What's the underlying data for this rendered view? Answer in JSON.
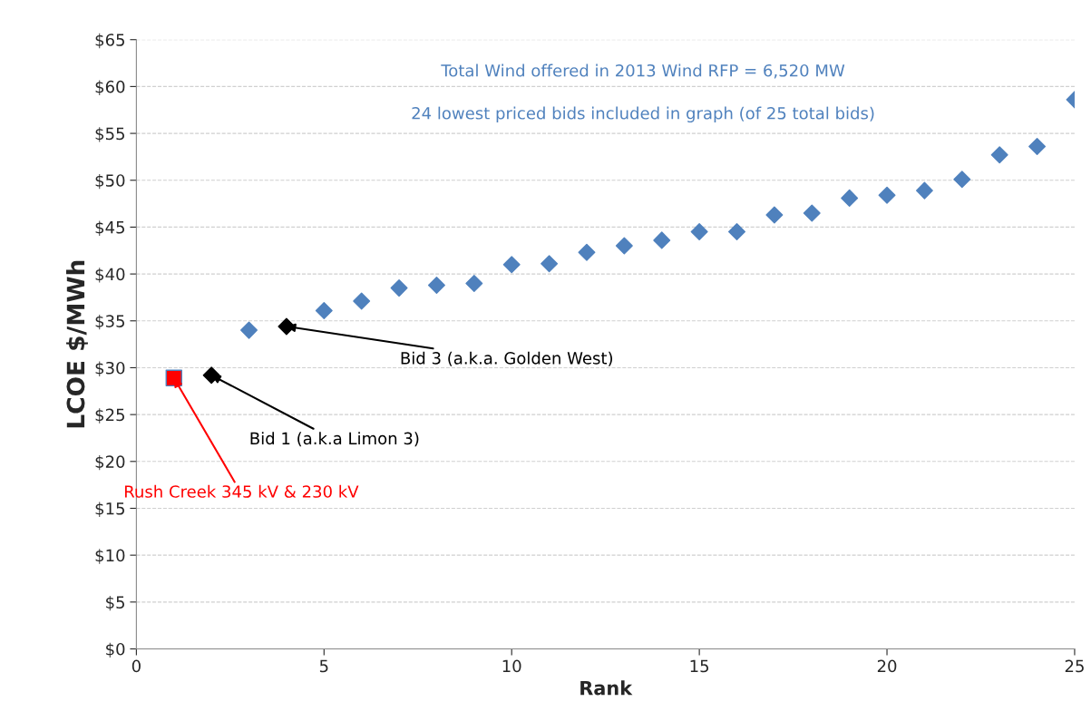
{
  "chart_data": {
    "type": "scatter",
    "xlabel": "Rank",
    "ylabel": "LCOE $/MWh",
    "xlim": [
      0,
      25
    ],
    "ylim": [
      0,
      65
    ],
    "xticks": [
      0,
      5,
      10,
      15,
      20,
      25
    ],
    "yticks": [
      {
        "value": 0,
        "label": "$0"
      },
      {
        "value": 5,
        "label": "$5"
      },
      {
        "value": 10,
        "label": "$10"
      },
      {
        "value": 15,
        "label": "$15"
      },
      {
        "value": 20,
        "label": "$20"
      },
      {
        "value": 25,
        "label": "$25"
      },
      {
        "value": 30,
        "label": "$30"
      },
      {
        "value": 35,
        "label": "$35"
      },
      {
        "value": 40,
        "label": "$40"
      },
      {
        "value": 45,
        "label": "$45"
      },
      {
        "value": 50,
        "label": "$50"
      },
      {
        "value": 55,
        "label": "$55"
      },
      {
        "value": 60,
        "label": "$60"
      },
      {
        "value": 65,
        "label": "$65"
      }
    ],
    "grid": "y",
    "legend": false,
    "series": [
      {
        "color": "#4f81bd",
        "marker": "diamond",
        "x": [
          3,
          5,
          6,
          7,
          8,
          9,
          10,
          11,
          12,
          13,
          14,
          15,
          16,
          17,
          18,
          19,
          20,
          21,
          22,
          23,
          24,
          25
        ],
        "values": [
          34.0,
          36.1,
          37.1,
          38.5,
          38.8,
          39.0,
          41.0,
          41.1,
          42.3,
          43.0,
          43.6,
          44.5,
          44.5,
          46.3,
          46.5,
          48.1,
          48.4,
          48.9,
          50.1,
          52.7,
          53.6,
          58.6
        ]
      },
      {
        "color": "#000000",
        "marker": "diamond",
        "x": [
          2,
          4
        ],
        "values": [
          29.2,
          34.4
        ]
      },
      {
        "color": "#ff0000",
        "marker": "square",
        "x": [
          1
        ],
        "values": [
          28.9
        ]
      }
    ],
    "annotations": [
      "Total Wind offered in 2013 Wind RFP = 6,520 MW",
      "24 lowest priced bids included in graph (of 25 total bids)",
      {
        "text": "Rush Creek 345 kV & 230 kV",
        "x": 1,
        "y": 28.9
      },
      {
        "text": "Bid 1 (a.k.a Limon 3)",
        "x": 2,
        "y": 29.2
      },
      {
        "text": "Bid 3 (a.k.a. Golden West)",
        "x": 4,
        "y": 34.4
      }
    ]
  }
}
